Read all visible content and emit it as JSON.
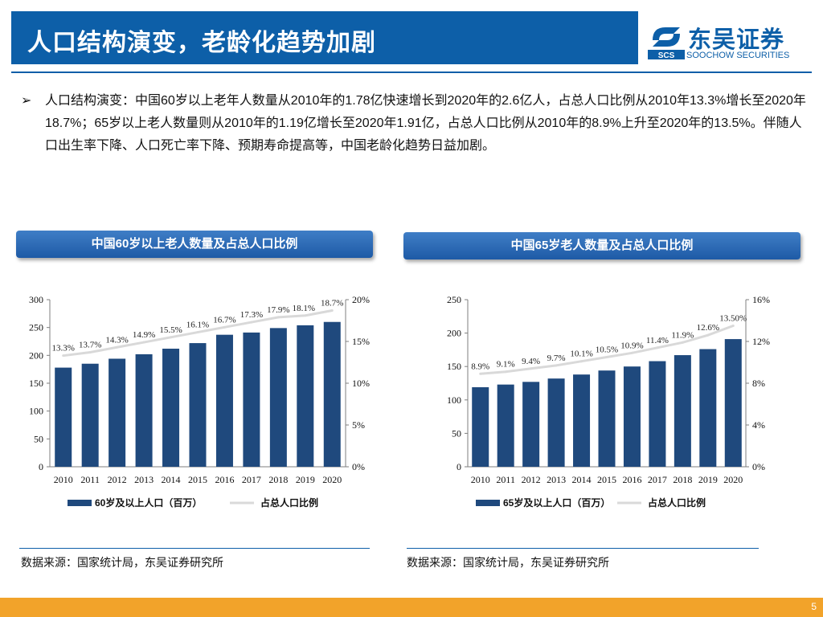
{
  "header": {
    "title": "人口结构演变，老龄化趋势加剧",
    "logo_cn": "东吴证券",
    "logo_en": "SOOCHOW SECURITIES",
    "logo_mark": "SCS"
  },
  "summary": {
    "bullet": "➢",
    "text": "人口结构演变：中国60岁以上老年人数量从2010年的1.78亿快速增长到2020年的2.6亿人，占总人口比例从2010年13.3%增长至2020年18.7%；65岁以上老人数量则从2010年的1.19亿增长至2020年1.91亿，占总人口比例从2010年的8.9%上升至2020年的13.5%。伴随人口出生率下降、人口死亡率下降、预期寿命提高等，中国老龄化趋势日益加剧。"
  },
  "left_section": {
    "banner": "中国60岁以上老人数量及占总人口比例",
    "source": "数据来源：国家统计局，东吴证券研究所"
  },
  "right_section": {
    "banner": "中国65岁老人数量及占总人口比例",
    "source": "数据来源：国家统计局，东吴证券研究所"
  },
  "colors": {
    "brand": "#0d5fa8",
    "bar": "#1f497d",
    "line": "#d9d9d9",
    "footer": "#f2a32a"
  },
  "footer": {
    "page_number": "5"
  },
  "chart_data": [
    {
      "type": "bar",
      "title": "中国60岁以上老人数量及占总人口比例",
      "categories": [
        "2010",
        "2011",
        "2012",
        "2013",
        "2014",
        "2015",
        "2016",
        "2017",
        "2018",
        "2019",
        "2020"
      ],
      "series": [
        {
          "name": "60岁及以上人口（百万）",
          "type": "bar",
          "axis": "left",
          "values": [
            178,
            185,
            194,
            202,
            212,
            222,
            237,
            241,
            249,
            254,
            260
          ]
        },
        {
          "name": "占总人口比例",
          "type": "line",
          "axis": "right",
          "values": [
            13.3,
            13.7,
            14.3,
            14.9,
            15.5,
            16.1,
            16.7,
            17.3,
            17.9,
            18.1,
            18.7
          ],
          "labels": [
            "13.3%",
            "13.7%",
            "14.3%",
            "14.9%",
            "15.5%",
            "16.1%",
            "16.7%",
            "17.3%",
            "17.9%",
            "18.1%",
            "18.7%"
          ]
        }
      ],
      "ylim": [
        0,
        300
      ],
      "yticks": [
        0,
        50,
        100,
        150,
        200,
        250,
        300
      ],
      "ytick_labels": [
        "0",
        "50",
        "100",
        "150",
        "200",
        "250",
        "300"
      ],
      "y2lim": [
        0,
        20
      ],
      "y2ticks": [
        0,
        5,
        10,
        15,
        20
      ],
      "y2tick_labels": [
        "0%",
        "5%",
        "10%",
        "15%",
        "20%"
      ],
      "legend": "bottom",
      "grid": false
    },
    {
      "type": "bar",
      "title": "中国65岁老人数量及占总人口比例",
      "categories": [
        "2010",
        "2011",
        "2012",
        "2013",
        "2014",
        "2015",
        "2016",
        "2017",
        "2018",
        "2019",
        "2020"
      ],
      "series": [
        {
          "name": "65岁及以上人口（百万）",
          "type": "bar",
          "axis": "left",
          "values": [
            119,
            123,
            127,
            132,
            138,
            144,
            150,
            158,
            167,
            176,
            191
          ]
        },
        {
          "name": "占总人口比例",
          "type": "line",
          "axis": "right",
          "values": [
            8.9,
            9.1,
            9.4,
            9.7,
            10.1,
            10.5,
            10.9,
            11.4,
            11.9,
            12.6,
            13.5
          ],
          "labels": [
            "8.9%",
            "9.1%",
            "9.4%",
            "9.7%",
            "10.1%",
            "10.5%",
            "10.9%",
            "11.4%",
            "11.9%",
            "12.6%",
            "13.50%"
          ]
        }
      ],
      "ylim": [
        0,
        250
      ],
      "yticks": [
        0,
        50,
        100,
        150,
        200,
        250
      ],
      "ytick_labels": [
        "0",
        "50",
        "100",
        "150",
        "200",
        "250"
      ],
      "y2lim": [
        0,
        16
      ],
      "y2ticks": [
        0,
        4,
        8,
        12,
        16
      ],
      "y2tick_labels": [
        "0%",
        "4%",
        "8%",
        "12%",
        "16%"
      ],
      "legend": "bottom",
      "grid": false
    }
  ]
}
